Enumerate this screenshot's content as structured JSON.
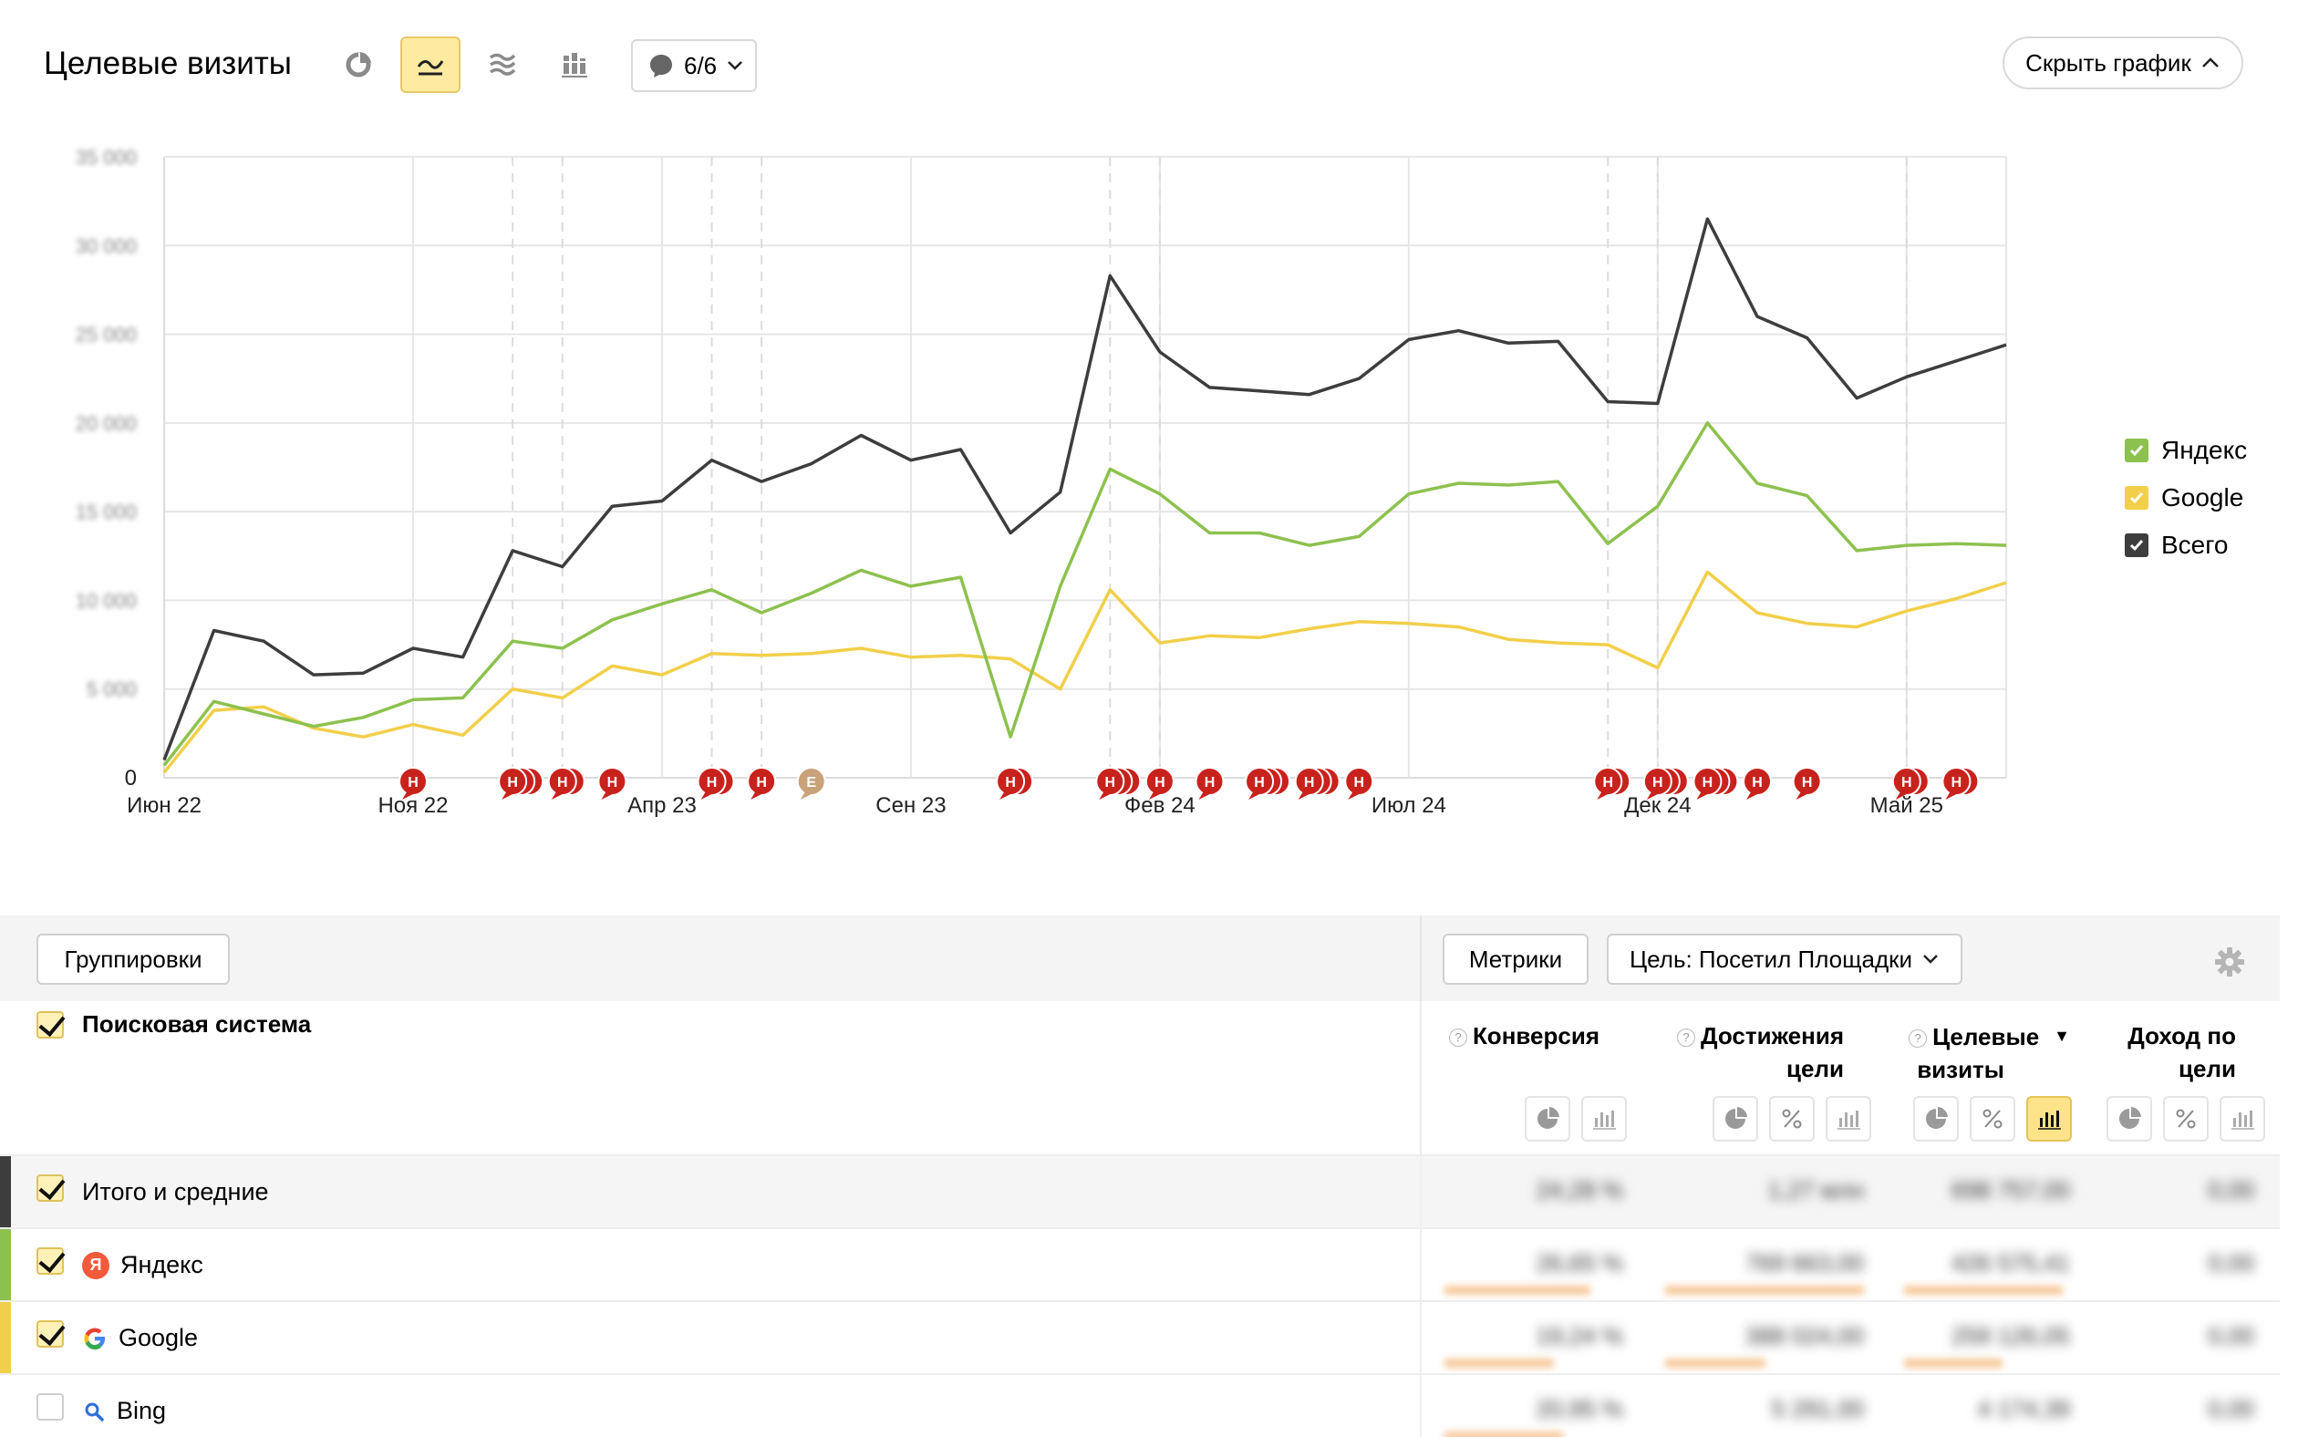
{
  "header": {
    "title": "Целевые визиты",
    "notes_dropdown": "6/6",
    "hide_chart_button": "Скрыть график"
  },
  "chart_data": {
    "type": "line",
    "x_labels": [
      "Июн 22",
      "Ноя 22",
      "Апр 23",
      "Сен 23",
      "Фев 24",
      "Июл 24",
      "Дек 24",
      "Май 25"
    ],
    "x_label_positions": [
      0,
      5,
      10,
      15,
      20,
      25,
      30,
      35
    ],
    "y_zero_label": "0",
    "y_tick_labels_blurred": [
      "35 000",
      "30 000",
      "25 000",
      "20 000",
      "15 000",
      "10 000",
      "5 000"
    ],
    "ylim": [
      0,
      35000
    ],
    "grid": true,
    "legend_position": "right",
    "series": [
      {
        "name": "Всего",
        "color": "#3d3d3d",
        "values": [
          1000,
          8300,
          7700,
          5800,
          5900,
          7300,
          6800,
          12800,
          11900,
          15300,
          15600,
          17900,
          16700,
          17700,
          19300,
          17900,
          18500,
          13800,
          16100,
          28300,
          24000,
          22000,
          21800,
          21600,
          22500,
          24700,
          25200,
          24500,
          24600,
          21200,
          21100,
          31500,
          26000,
          24800,
          21400,
          22600,
          23500,
          24400
        ]
      },
      {
        "name": "Яндекс",
        "color": "#8dc14f",
        "values": [
          700,
          4300,
          3600,
          2900,
          3400,
          4400,
          4500,
          7700,
          7300,
          8900,
          9800,
          10600,
          9300,
          10400,
          11700,
          10800,
          11300,
          2300,
          10800,
          17400,
          16000,
          13800,
          13800,
          13100,
          13600,
          16000,
          16600,
          16500,
          16700,
          13200,
          15300,
          20000,
          16600,
          15900,
          12800,
          13100,
          13200,
          13100
        ]
      },
      {
        "name": "Google",
        "color": "#f2cf4a",
        "values": [
          300,
          3800,
          4000,
          2800,
          2300,
          3000,
          2400,
          5000,
          4500,
          6300,
          5800,
          7000,
          6900,
          7000,
          7300,
          6800,
          6900,
          6700,
          5000,
          10600,
          7600,
          8000,
          7900,
          8400,
          8800,
          8700,
          8500,
          7800,
          7600,
          7500,
          6200,
          11600,
          9300,
          8700,
          8500,
          9400,
          10100,
          11000
        ]
      }
    ],
    "annotations": [
      {
        "pos": 5,
        "count": 1,
        "letter": "Н"
      },
      {
        "pos": 7,
        "count": 3,
        "letter": "Н"
      },
      {
        "pos": 8,
        "count": 2,
        "letter": "Н"
      },
      {
        "pos": 9,
        "count": 1,
        "letter": "Н"
      },
      {
        "pos": 11,
        "count": 2,
        "letter": "Н"
      },
      {
        "pos": 12,
        "count": 1,
        "letter": "Н"
      },
      {
        "pos": 13,
        "count": 1,
        "letter": "Е",
        "color": "#c9a27a"
      },
      {
        "pos": 17,
        "count": 2,
        "letter": "Н"
      },
      {
        "pos": 19,
        "count": 3,
        "letter": "Н"
      },
      {
        "pos": 20,
        "count": 1,
        "letter": "Н"
      },
      {
        "pos": 21,
        "count": 1,
        "letter": "Н"
      },
      {
        "pos": 22,
        "count": 3,
        "letter": "Н"
      },
      {
        "pos": 23,
        "count": 3,
        "letter": "Н"
      },
      {
        "pos": 24,
        "count": 1,
        "letter": "Н"
      },
      {
        "pos": 29,
        "count": 2,
        "letter": "Н"
      },
      {
        "pos": 30,
        "count": 3,
        "letter": "Н"
      },
      {
        "pos": 31,
        "count": 3,
        "letter": "Н"
      },
      {
        "pos": 32,
        "count": 1,
        "letter": "Н"
      },
      {
        "pos": 33,
        "count": 1,
        "letter": "Н"
      },
      {
        "pos": 35,
        "count": 2,
        "letter": "Н"
      },
      {
        "pos": 36,
        "count": 2,
        "letter": "Н"
      }
    ],
    "dashed_gridlines": [
      7,
      8,
      11,
      12,
      19,
      20,
      29,
      30,
      35
    ]
  },
  "legend": [
    {
      "label": "Яндекс",
      "color": "#8dc14f"
    },
    {
      "label": "Google",
      "color": "#f2cf4a"
    },
    {
      "label": "Всего",
      "color": "#3d3d3d"
    }
  ],
  "toolbar": {
    "groupings": "Группировки",
    "metrics": "Метрики",
    "goal": "Цель: Посетил Площадки"
  },
  "table": {
    "dimension_header": "Поисковая система",
    "columns": [
      {
        "label_line1": "Конверсия",
        "label_line2": ""
      },
      {
        "label_line1": "Достижения",
        "label_line2": "цели"
      },
      {
        "label_line1": "Целевые",
        "label_line2": "визиты",
        "sort": "▼"
      },
      {
        "label_line1": "Доход по",
        "label_line2": "цели"
      }
    ],
    "rows": [
      {
        "label": "Итого и средние",
        "color": "#3d3d3d",
        "checked": true,
        "values": [
          "24,28 %",
          "1,27 млн",
          "698 757,00",
          "0,00"
        ]
      },
      {
        "label": "Яндекс",
        "color": "#8dc14f",
        "checked": true,
        "icon": "yandex-icon",
        "values": [
          "26,65 %",
          "769 663,00",
          "426 575,41",
          "0,00"
        ]
      },
      {
        "label": "Google",
        "color": "#f2cf4a",
        "checked": true,
        "icon": "google-icon",
        "values": [
          "19,24 %",
          "388 024,00",
          "259 126,05",
          "0,00"
        ]
      },
      {
        "label": "Bing",
        "color": "",
        "checked": false,
        "icon": "search-icon",
        "values": [
          "20,95 %",
          "5 291,00",
          "4 174,39",
          "0,00"
        ]
      }
    ]
  }
}
